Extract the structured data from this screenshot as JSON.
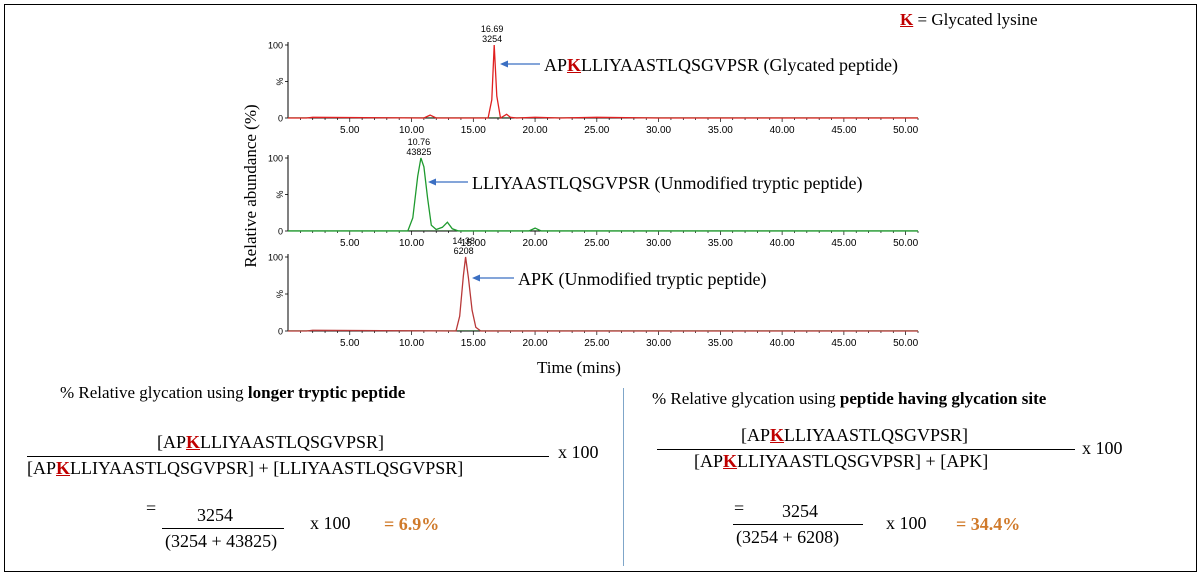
{
  "legend_note": {
    "letter": "K",
    "text": "= Glycated lysine"
  },
  "ylabel": "Relative abundance (%)",
  "xlabel": "Time (mins)",
  "chart_data": [
    {
      "type": "line",
      "color": "#e02020",
      "xlim": [
        0,
        51
      ],
      "ylim": [
        0,
        100
      ],
      "x_ticks": [
        "5.00",
        "10.00",
        "15.00",
        "20.00",
        "25.00",
        "30.00",
        "35.00",
        "40.00",
        "45.00",
        "50.00"
      ],
      "y_ticks": [
        "100",
        "%",
        "0"
      ],
      "peak": {
        "time": "16.69",
        "intensity": "3254"
      },
      "series": [
        {
          "x": [
            0,
            1.5,
            2,
            11,
            11.5,
            12,
            16.2,
            16.5,
            16.69,
            16.9,
            17.2,
            17.7,
            18,
            18.5,
            20,
            22,
            25,
            30,
            51
          ],
          "y": [
            0,
            0,
            1,
            0,
            4,
            0,
            0,
            25,
            100,
            30,
            0,
            5,
            1,
            0,
            1,
            0,
            1,
            0,
            0
          ]
        }
      ],
      "annotation": {
        "prefix": "AP",
        "k": "K",
        "suffix": "LLIYAASTLQSGVPSR (Glycated peptide)"
      }
    },
    {
      "type": "line",
      "color": "#1e9a2e",
      "xlim": [
        0,
        51
      ],
      "ylim": [
        0,
        100
      ],
      "x_ticks": [
        "5.00",
        "10.00",
        "15.00",
        "20.00",
        "25.00",
        "30.00",
        "35.00",
        "40.00",
        "45.00",
        "50.00"
      ],
      "y_ticks": [
        "100",
        "%",
        "0"
      ],
      "peak": {
        "time": "10.76",
        "intensity": "43825"
      },
      "series": [
        {
          "x": [
            0,
            9.7,
            10.1,
            10.5,
            10.76,
            11,
            11.3,
            11.6,
            12,
            12.5,
            12.9,
            13.3,
            13.8,
            19.5,
            20,
            20.5,
            51
          ],
          "y": [
            0,
            0,
            18,
            75,
            100,
            88,
            45,
            8,
            2,
            5,
            12,
            3,
            0,
            0,
            4,
            0,
            0
          ]
        }
      ],
      "annotation": {
        "text": "LLIYAASTLQSGVPSR (Unmodified tryptic peptide)"
      }
    },
    {
      "type": "line",
      "color": "#b83838",
      "xlim": [
        0,
        51
      ],
      "ylim": [
        0,
        100
      ],
      "x_ticks": [
        "5.00",
        "10.00",
        "15.00",
        "20.00",
        "25.00",
        "30.00",
        "35.00",
        "40.00",
        "45.00",
        "50.00"
      ],
      "y_ticks": [
        "100",
        "%",
        "0"
      ],
      "peak": {
        "time": "14.38",
        "intensity": "6208"
      },
      "series": [
        {
          "x": [
            0,
            1.5,
            2,
            13.6,
            13.9,
            14.2,
            14.38,
            14.6,
            14.9,
            15.2,
            15.6,
            51
          ],
          "y": [
            0,
            0,
            1,
            0,
            20,
            75,
            100,
            72,
            28,
            5,
            0,
            0
          ]
        }
      ],
      "annotation": {
        "text": "APK (Unmodified tryptic peptide)"
      }
    }
  ],
  "left_panel": {
    "heading_plain": "% Relative glycation using ",
    "heading_bold": "longer tryptic peptide",
    "num_pre": "[AP",
    "num_k": "K",
    "num_post": "LLIYAASTLQSGVPSR]",
    "den_pre": "[AP",
    "den_k": "K",
    "den_post": "LLIYAASTLQSGVPSR] + [LLIYAASTLQSGVPSR]",
    "times": "x 100",
    "eq": "=",
    "val_num": "3254",
    "val_den": "(3254 + 43825)",
    "val_times": "x 100",
    "result": "= 6.9%"
  },
  "right_panel": {
    "heading_plain": "% Relative glycation using ",
    "heading_bold": "peptide having glycation site",
    "num_pre": "[AP",
    "num_k": "K",
    "num_post": "LLIYAASTLQSGVPSR]",
    "den_pre": "[AP",
    "den_k": "K",
    "den_post": "LLIYAASTLQSGVPSR] + [APK]",
    "times": "x 100",
    "eq": "=",
    "val_num": "3254",
    "val_den": "(3254 + 6208)",
    "val_times": "x 100",
    "result": "= 34.4%"
  }
}
